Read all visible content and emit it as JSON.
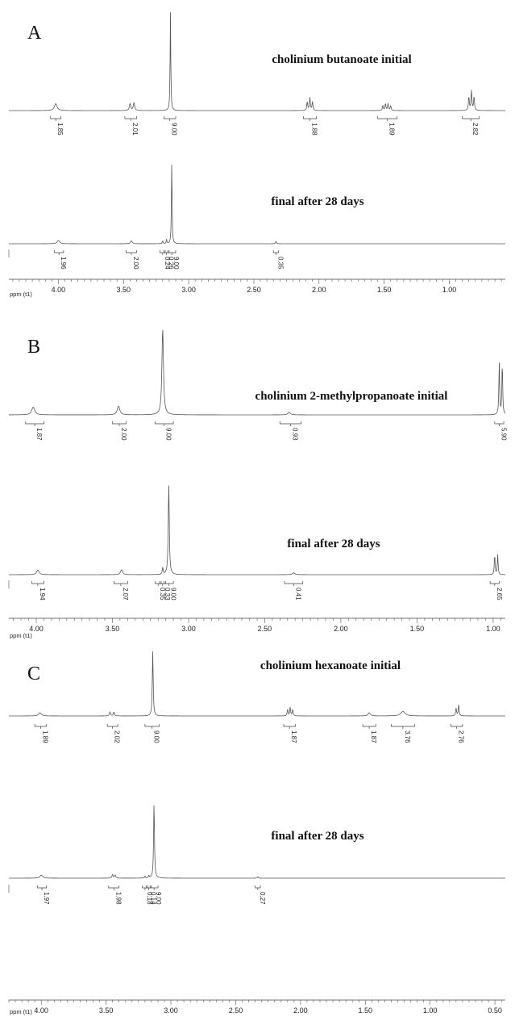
{
  "chart_data": [
    {
      "type": "line",
      "panel": "A",
      "xlabel": "ppm (t1)",
      "axis_ticks": [
        "4.00",
        "3.50",
        "3.00",
        "2.50",
        "2.00",
        "1.50",
        "1.00"
      ],
      "xlim": [
        4.38,
        0.57
      ],
      "x_reversed": true,
      "spectra": [
        {
          "name": "cholinium butanoate initial",
          "peaks": [
            {
              "ppm": 4.02,
              "height": 0.07,
              "width": 0.012
            },
            {
              "ppm": 3.45,
              "height": 0.07,
              "width": 0.006
            },
            {
              "ppm": 3.42,
              "height": 0.08,
              "width": 0.006
            },
            {
              "ppm": 3.14,
              "height": 1.0,
              "width": 0.003
            },
            {
              "ppm": 2.09,
              "height": 0.09,
              "width": 0.004
            },
            {
              "ppm": 2.07,
              "height": 0.13,
              "width": 0.004
            },
            {
              "ppm": 2.05,
              "height": 0.09,
              "width": 0.004
            },
            {
              "ppm": 1.51,
              "height": 0.05,
              "width": 0.004
            },
            {
              "ppm": 1.49,
              "height": 0.07,
              "width": 0.004
            },
            {
              "ppm": 1.47,
              "height": 0.07,
              "width": 0.004
            },
            {
              "ppm": 1.45,
              "height": 0.05,
              "width": 0.004
            },
            {
              "ppm": 0.85,
              "height": 0.14,
              "width": 0.004
            },
            {
              "ppm": 0.83,
              "height": 0.2,
              "width": 0.004
            },
            {
              "ppm": 0.81,
              "height": 0.14,
              "width": 0.004
            }
          ],
          "integrals": [
            {
              "from": 4.06,
              "to": 3.98,
              "value": "1.85"
            },
            {
              "from": 3.49,
              "to": 3.4,
              "value": "2.01"
            },
            {
              "from": 3.19,
              "to": 3.1,
              "value": "9.00"
            },
            {
              "from": 2.12,
              "to": 2.02,
              "value": "1.88"
            },
            {
              "from": 1.55,
              "to": 1.4,
              "value": "1.89"
            },
            {
              "from": 0.9,
              "to": 0.77,
              "value": "2.82"
            }
          ]
        },
        {
          "name": "final after 28 days",
          "peaks": [
            {
              "ppm": 4.0,
              "height": 0.04,
              "width": 0.012
            },
            {
              "ppm": 3.44,
              "height": 0.035,
              "width": 0.008
            },
            {
              "ppm": 3.2,
              "height": 0.035,
              "width": 0.003
            },
            {
              "ppm": 3.17,
              "height": 0.05,
              "width": 0.003
            },
            {
              "ppm": 3.13,
              "height": 1.0,
              "width": 0.003
            },
            {
              "ppm": 2.33,
              "height": 0.03,
              "width": 0.004
            }
          ],
          "integrals": [
            {
              "from": 4.03,
              "to": 3.96,
              "value": "1.96"
            },
            {
              "from": 3.48,
              "to": 3.4,
              "value": "2.00"
            },
            {
              "from": 3.22,
              "to": 3.18,
              "value": "0.24"
            },
            {
              "from": 3.19,
              "to": 3.15,
              "value": "0.26"
            },
            {
              "from": 3.16,
              "to": 3.1,
              "value": "9.00"
            },
            {
              "from": 2.35,
              "to": 2.31,
              "value": "0.35"
            }
          ]
        }
      ]
    },
    {
      "type": "line",
      "panel": "B",
      "xlabel": "ppm (t1)",
      "axis_ticks": [
        "4.00",
        "3.50",
        "3.00",
        "2.50",
        "2.00",
        "1.50",
        "1.00"
      ],
      "xlim": [
        4.18,
        0.92
      ],
      "x_reversed": true,
      "spectra": [
        {
          "name": "cholinium 2-methylpropanoate initial",
          "peaks": [
            {
              "ppm": 4.02,
              "height": 0.09,
              "width": 0.012
            },
            {
              "ppm": 3.46,
              "height": 0.1,
              "width": 0.01
            },
            {
              "ppm": 3.17,
              "height": 1.0,
              "width": 0.006
            },
            {
              "ppm": 2.34,
              "height": 0.03,
              "width": 0.01
            },
            {
              "ppm": 0.96,
              "height": 0.6,
              "width": 0.003
            },
            {
              "ppm": 0.94,
              "height": 0.6,
              "width": 0.003
            }
          ],
          "integrals": [
            {
              "from": 4.07,
              "to": 3.95,
              "value": "1.87"
            },
            {
              "from": 3.5,
              "to": 3.41,
              "value": "2.00"
            },
            {
              "from": 3.22,
              "to": 3.1,
              "value": "9.00"
            },
            {
              "from": 2.4,
              "to": 2.26,
              "value": "0.93"
            },
            {
              "from": 0.99,
              "to": 0.93,
              "value": "5.90"
            }
          ]
        },
        {
          "name": "final after 28 days",
          "peaks": [
            {
              "ppm": 3.99,
              "height": 0.05,
              "width": 0.01
            },
            {
              "ppm": 3.44,
              "height": 0.055,
              "width": 0.008
            },
            {
              "ppm": 3.17,
              "height": 0.08,
              "width": 0.003
            },
            {
              "ppm": 3.13,
              "height": 1.0,
              "width": 0.004
            },
            {
              "ppm": 2.31,
              "height": 0.02,
              "width": 0.01
            },
            {
              "ppm": 0.99,
              "height": 0.22,
              "width": 0.003
            },
            {
              "ppm": 0.97,
              "height": 0.22,
              "width": 0.003
            }
          ],
          "integrals": [
            {
              "from": 4.03,
              "to": 3.95,
              "value": "1.94"
            },
            {
              "from": 3.49,
              "to": 3.4,
              "value": "2.07"
            },
            {
              "from": 3.22,
              "to": 3.18,
              "value": "0.35"
            },
            {
              "from": 3.19,
              "to": 3.15,
              "value": "0.33"
            },
            {
              "from": 3.16,
              "to": 3.1,
              "value": "9.00"
            },
            {
              "from": 2.37,
              "to": 2.25,
              "value": "0.41"
            },
            {
              "from": 1.02,
              "to": 0.96,
              "value": "2.65"
            }
          ]
        }
      ]
    },
    {
      "type": "line",
      "panel": "C",
      "xlabel": "ppm (t1)",
      "axis_ticks": [
        "4.00",
        "3.50",
        "3.00",
        "2.50",
        "2.00",
        "1.50",
        "1.00",
        "0.50"
      ],
      "xlim": [
        4.25,
        0.42
      ],
      "x_reversed": true,
      "spectra": [
        {
          "name": "cholinium hexanoate initial",
          "peaks": [
            {
              "ppm": 4.01,
              "height": 0.05,
              "width": 0.012
            },
            {
              "ppm": 3.47,
              "height": 0.06,
              "width": 0.005
            },
            {
              "ppm": 3.44,
              "height": 0.06,
              "width": 0.005
            },
            {
              "ppm": 3.14,
              "height": 1.0,
              "width": 0.004
            },
            {
              "ppm": 2.1,
              "height": 0.1,
              "width": 0.004
            },
            {
              "ppm": 2.08,
              "height": 0.13,
              "width": 0.004
            },
            {
              "ppm": 2.06,
              "height": 0.1,
              "width": 0.004
            },
            {
              "ppm": 1.47,
              "height": 0.05,
              "width": 0.01
            },
            {
              "ppm": 1.21,
              "height": 0.07,
              "width": 0.02
            },
            {
              "ppm": 0.8,
              "height": 0.12,
              "width": 0.004
            },
            {
              "ppm": 0.78,
              "height": 0.17,
              "width": 0.004
            }
          ],
          "integrals": [
            {
              "from": 4.05,
              "to": 3.96,
              "value": "1.89"
            },
            {
              "from": 3.49,
              "to": 3.41,
              "value": "2.02"
            },
            {
              "from": 3.2,
              "to": 3.09,
              "value": "9.00"
            },
            {
              "from": 2.13,
              "to": 2.04,
              "value": "1.87"
            },
            {
              "from": 1.52,
              "to": 1.42,
              "value": "1.87"
            },
            {
              "from": 1.3,
              "to": 1.12,
              "value": "3.76"
            },
            {
              "from": 0.84,
              "to": 0.75,
              "value": "2.76"
            }
          ]
        },
        {
          "name": "final after 28 days",
          "peaks": [
            {
              "ppm": 4.0,
              "height": 0.04,
              "width": 0.012
            },
            {
              "ppm": 3.45,
              "height": 0.05,
              "width": 0.005
            },
            {
              "ppm": 3.43,
              "height": 0.04,
              "width": 0.005
            },
            {
              "ppm": 3.2,
              "height": 0.025,
              "width": 0.003
            },
            {
              "ppm": 3.17,
              "height": 0.035,
              "width": 0.003
            },
            {
              "ppm": 3.13,
              "height": 1.0,
              "width": 0.004
            },
            {
              "ppm": 2.33,
              "height": 0.02,
              "width": 0.004
            }
          ],
          "integrals": [
            {
              "from": 4.03,
              "to": 3.96,
              "value": "1.97"
            },
            {
              "from": 3.48,
              "to": 3.4,
              "value": "1.98"
            },
            {
              "from": 3.22,
              "to": 3.18,
              "value": "0.18"
            },
            {
              "from": 3.19,
              "to": 3.15,
              "value": "0.14"
            },
            {
              "from": 3.16,
              "to": 3.1,
              "value": "9.00"
            },
            {
              "from": 2.35,
              "to": 2.31,
              "value": "0.27"
            }
          ]
        }
      ]
    }
  ]
}
